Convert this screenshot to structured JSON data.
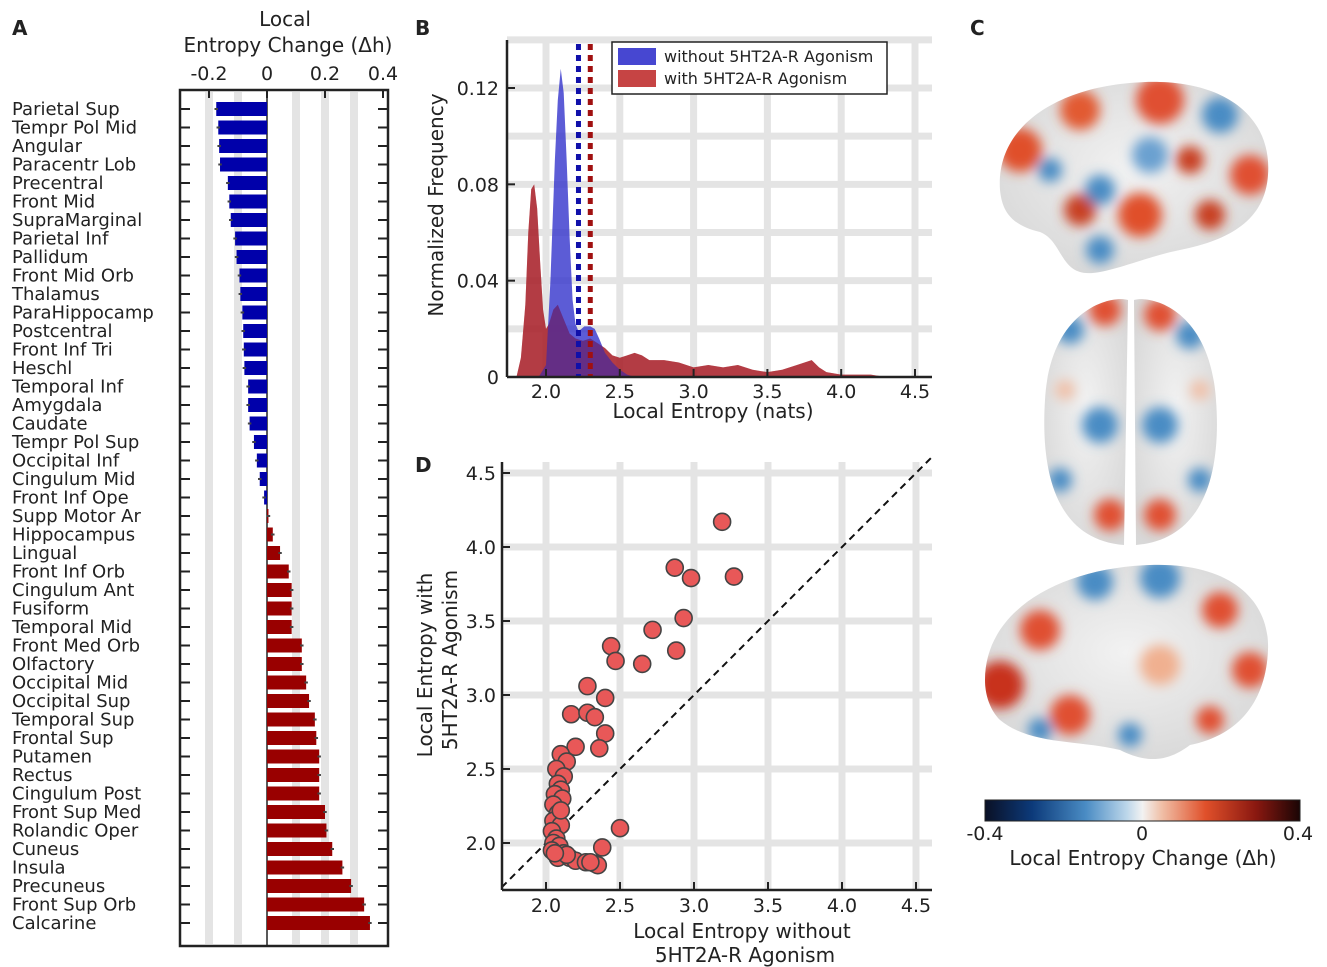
{
  "panels": {
    "a": "A",
    "b": "B",
    "c": "C",
    "d": "D"
  },
  "colors": {
    "negative": "#0000aa",
    "positive": "#990000",
    "hist_without": "#3333cc",
    "hist_with": "#c03030",
    "scatter_fill": "#e85858"
  },
  "chart_data": [
    {
      "id": "A",
      "type": "bar",
      "orientation": "horizontal",
      "xlabel_line1": "Local",
      "xlabel_line2": "Entropy Change (Δh)",
      "xticks": [
        -0.2,
        0,
        0.2,
        0.4
      ],
      "xtick_labels": [
        "-0.2",
        "0",
        "0.2",
        "0.4"
      ],
      "xlim": [
        -0.3,
        0.42
      ],
      "grid": true,
      "categories": [
        "Parietal Sup",
        "Tempr Pol Mid",
        "Angular",
        "Paracentr Lob",
        "Precentral",
        "Front Mid",
        "SupraMarginal",
        "Parietal Inf",
        "Pallidum",
        "Front Mid Orb",
        "Thalamus",
        "ParaHippocamp",
        "Postcentral",
        "Front Inf Tri",
        "Heschl",
        "Temporal Inf",
        "Amygdala",
        "Caudate",
        "Tempr Pol Sup",
        "Occipital Inf",
        "Cingulum Mid",
        "Front Inf Ope",
        "Supp Motor Ar",
        "Hippocampus",
        "Lingual",
        "Front Inf Orb",
        "Cingulum Ant",
        "Fusiform",
        "Temporal Mid",
        "Front Med Orb",
        "Olfactory",
        "Occipital Mid",
        "Occipital Sup",
        "Temporal Sup",
        "Frontal Sup",
        "Putamen",
        "Rectus",
        "Cingulum Post",
        "Front Sup Med",
        "Rolandic Oper",
        "Cuneus",
        "Insula",
        "Precuneus",
        "Front Sup Orb",
        "Calcarine"
      ],
      "values": [
        -0.175,
        -0.168,
        -0.165,
        -0.162,
        -0.135,
        -0.13,
        -0.125,
        -0.11,
        -0.105,
        -0.095,
        -0.092,
        -0.085,
        -0.082,
        -0.08,
        -0.078,
        -0.065,
        -0.065,
        -0.06,
        -0.045,
        -0.035,
        -0.025,
        -0.01,
        0.005,
        0.02,
        0.045,
        0.075,
        0.085,
        0.085,
        0.085,
        0.12,
        0.12,
        0.135,
        0.145,
        0.165,
        0.17,
        0.18,
        0.18,
        0.18,
        0.2,
        0.205,
        0.225,
        0.26,
        0.29,
        0.335,
        0.355
      ],
      "errors": [
        0.006,
        0.006,
        0.006,
        0.006,
        0.006,
        0.006,
        0.006,
        0.006,
        0.006,
        0.006,
        0.006,
        0.006,
        0.006,
        0.006,
        0.006,
        0.006,
        0.006,
        0.006,
        0.006,
        0.006,
        0.006,
        0.006,
        0.006,
        0.006,
        0.006,
        0.006,
        0.006,
        0.006,
        0.006,
        0.006,
        0.006,
        0.006,
        0.006,
        0.006,
        0.006,
        0.006,
        0.006,
        0.006,
        0.006,
        0.006,
        0.006,
        0.006,
        0.006,
        0.006,
        0.006
      ]
    },
    {
      "id": "B",
      "type": "area",
      "xlabel": "Local Entropy (nats)",
      "ylabel": "Normalized Frequency",
      "xlim": [
        1.75,
        4.6
      ],
      "ylim": [
        0,
        0.14
      ],
      "xticks": [
        2.0,
        2.5,
        3.0,
        3.5,
        4.0,
        4.5
      ],
      "xtick_labels": [
        "2.0",
        "2.5",
        "3.0",
        "3.5",
        "4.0",
        "4.5"
      ],
      "yticks": [
        0,
        0.04,
        0.08,
        0.12
      ],
      "ytick_labels": [
        "0",
        "0.04",
        "0.08",
        "0.12"
      ],
      "legend_position": "top-right",
      "series": [
        {
          "name": "without 5HT2A-R Agonism",
          "color": "#3333cc",
          "mean": 2.22,
          "x": [
            1.95,
            2.0,
            2.03,
            2.06,
            2.08,
            2.1,
            2.12,
            2.14,
            2.16,
            2.18,
            2.2,
            2.22,
            2.24,
            2.26,
            2.28,
            2.3,
            2.33,
            2.36,
            2.4,
            2.45,
            2.5,
            2.55,
            2.6
          ],
          "y": [
            0,
            0.005,
            0.04,
            0.09,
            0.115,
            0.128,
            0.118,
            0.09,
            0.058,
            0.032,
            0.022,
            0.019,
            0.02,
            0.021,
            0.021,
            0.021,
            0.02,
            0.016,
            0.01,
            0.006,
            0.003,
            0.001,
            0
          ]
        },
        {
          "name": "with 5HT2A-R Agonism",
          "color": "#c03030",
          "mean": 2.3,
          "x": [
            1.8,
            1.83,
            1.86,
            1.88,
            1.9,
            1.92,
            1.94,
            1.96,
            1.98,
            2.0,
            2.02,
            2.05,
            2.08,
            2.12,
            2.16,
            2.2,
            2.25,
            2.3,
            2.35,
            2.4,
            2.45,
            2.5,
            2.55,
            2.6,
            2.65,
            2.7,
            2.8,
            2.9,
            3.0,
            3.1,
            3.2,
            3.3,
            3.4,
            3.5,
            3.6,
            3.7,
            3.8,
            3.85,
            3.9,
            4.0,
            4.1,
            4.2,
            4.3
          ],
          "y": [
            0,
            0.008,
            0.03,
            0.06,
            0.078,
            0.08,
            0.07,
            0.048,
            0.028,
            0.02,
            0.022,
            0.028,
            0.03,
            0.024,
            0.018,
            0.016,
            0.015,
            0.016,
            0.014,
            0.012,
            0.009,
            0.008,
            0.009,
            0.01,
            0.009,
            0.007,
            0.007,
            0.006,
            0.004,
            0.005,
            0.004,
            0.005,
            0.003,
            0.002,
            0.003,
            0.005,
            0.007,
            0.004,
            0.002,
            0.001,
            0.001,
            0.001,
            0
          ]
        }
      ]
    },
    {
      "id": "C",
      "type": "heatmap",
      "colorbar_label": "Local Entropy Change (Δh)",
      "colorbar_min": -0.4,
      "colorbar_max": 0.4,
      "colorbar_ticks": [
        "-0.4",
        "0",
        "0.4"
      ]
    },
    {
      "id": "D",
      "type": "scatter",
      "xlabel_line1": "Local Entropy without",
      "xlabel_line2": "5HT2A-R Agonism",
      "ylabel_line1": "Local Entropy with",
      "ylabel_line2": "5HT2A-R Agonism",
      "xlim": [
        1.7,
        4.6
      ],
      "ylim": [
        1.7,
        4.6
      ],
      "xticks": [
        2.0,
        2.5,
        3.0,
        3.5,
        4.0,
        4.5
      ],
      "xtick_labels": [
        "2.0",
        "2.5",
        "3.0",
        "3.5",
        "4.0",
        "4.5"
      ],
      "yticks": [
        2.0,
        2.5,
        3.0,
        3.5,
        4.0,
        4.5
      ],
      "ytick_labels": [
        "2.0",
        "2.5",
        "3.0",
        "3.5",
        "4.0",
        "4.5"
      ],
      "identity_line": true,
      "points": [
        [
          3.19,
          4.17
        ],
        [
          2.87,
          3.86
        ],
        [
          2.98,
          3.79
        ],
        [
          3.27,
          3.8
        ],
        [
          2.93,
          3.52
        ],
        [
          2.72,
          3.44
        ],
        [
          2.44,
          3.33
        ],
        [
          2.88,
          3.3
        ],
        [
          2.47,
          3.23
        ],
        [
          2.65,
          3.21
        ],
        [
          2.28,
          3.06
        ],
        [
          2.4,
          2.98
        ],
        [
          2.17,
          2.87
        ],
        [
          2.28,
          2.88
        ],
        [
          2.33,
          2.85
        ],
        [
          2.4,
          2.74
        ],
        [
          2.36,
          2.64
        ],
        [
          2.2,
          2.65
        ],
        [
          2.1,
          2.6
        ],
        [
          2.14,
          2.55
        ],
        [
          2.07,
          2.5
        ],
        [
          2.12,
          2.45
        ],
        [
          2.08,
          2.4
        ],
        [
          2.1,
          2.36
        ],
        [
          2.06,
          2.33
        ],
        [
          2.11,
          2.3
        ],
        [
          2.05,
          2.26
        ],
        [
          2.08,
          2.2
        ],
        [
          2.05,
          2.15
        ],
        [
          2.1,
          2.12
        ],
        [
          2.04,
          2.08
        ],
        [
          2.07,
          2.03
        ],
        [
          2.05,
          2.0
        ],
        [
          2.09,
          1.98
        ],
        [
          2.04,
          1.95
        ],
        [
          2.12,
          1.93
        ],
        [
          2.08,
          1.9
        ],
        [
          2.16,
          1.9
        ],
        [
          2.2,
          1.88
        ],
        [
          2.27,
          1.87
        ],
        [
          2.33,
          1.86
        ],
        [
          2.35,
          1.85
        ],
        [
          2.3,
          1.87
        ],
        [
          2.38,
          1.97
        ],
        [
          2.5,
          2.1
        ],
        [
          2.14,
          1.92
        ],
        [
          2.06,
          1.93
        ],
        [
          2.1,
          2.22
        ]
      ]
    }
  ]
}
